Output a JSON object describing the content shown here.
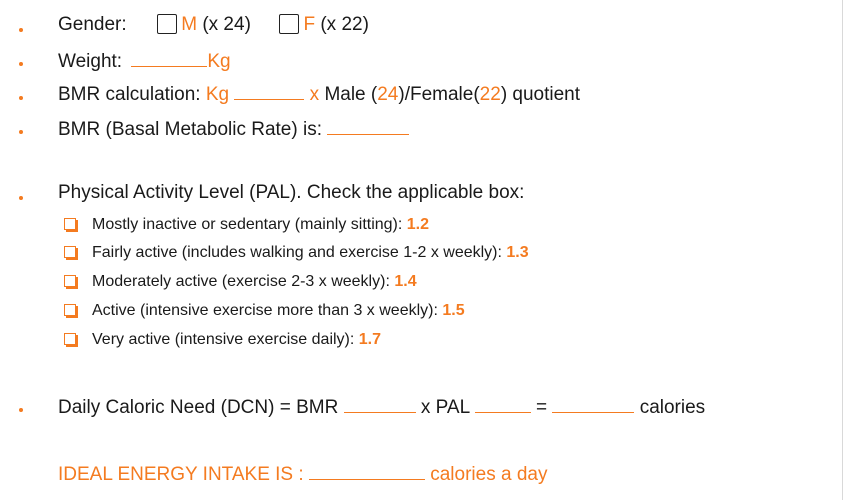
{
  "gender": {
    "label": "Gender:",
    "male_letter": "M",
    "male_factor": "(x 24)",
    "female_letter": "F",
    "female_factor": "(x 22)"
  },
  "weight": {
    "label": "Weight:",
    "unit": "Kg"
  },
  "bmr_calc": {
    "label": "BMR calculation:",
    "unit": "Kg",
    "times": "x",
    "male": "Male (",
    "male_num": "24",
    "female": ")/Female(",
    "female_num": "22",
    "end": ") quotient"
  },
  "bmr_result": {
    "label": "BMR (Basal Metabolic Rate) is:"
  },
  "pal": {
    "heading": "Physical Activity Level (PAL). Check the applicable box:",
    "options": [
      {
        "text": "Mostly inactive or sedentary (mainly sitting):",
        "value": "1.2"
      },
      {
        "text": "Fairly active (includes walking and exercise 1-2 x weekly):",
        "value": "1.3"
      },
      {
        "text": "Moderately active (exercise 2-3 x weekly):",
        "value": "1.4"
      },
      {
        "text": "Active (intensive exercise more than 3 x weekly):",
        "value": "1.5"
      },
      {
        "text": "Very active (intensive exercise daily):",
        "value": "1.7"
      }
    ]
  },
  "dcn": {
    "label": "Daily Caloric Need (DCN) = BMR",
    "times": "x PAL",
    "equals": "=",
    "unit": "calories"
  },
  "ideal": {
    "label": "IDEAL ENERGY INTAKE IS :",
    "unit": "calories a day"
  },
  "colors": {
    "accent": "#f47b20",
    "text": "#1a1a1a"
  }
}
